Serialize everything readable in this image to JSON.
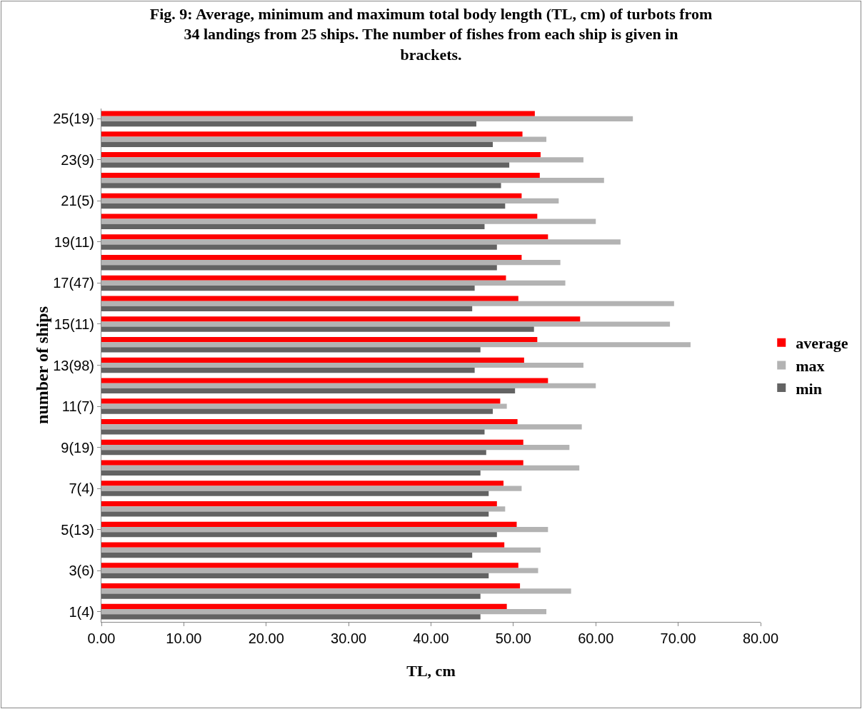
{
  "chart_data": {
    "type": "bar",
    "orientation": "horizontal",
    "title": "Fig. 9: Average, minimum and maximum total body length (TL, cm) of turbots from 34 landings from 25 ships. The number of fishes from each ship is given in brackets.",
    "xlabel": "TL, cm",
    "ylabel": "number of ships",
    "categories": [
      "25(19)",
      null,
      "23(9)",
      null,
      "21(5)",
      null,
      "19(11)",
      null,
      "17(47)",
      null,
      "15(11)",
      null,
      "13(98)",
      null,
      "11(7)",
      null,
      "9(19)",
      null,
      "7(4)",
      null,
      "5(13)",
      null,
      "3(6)",
      null,
      "1(4)"
    ],
    "series": [
      {
        "name": "average",
        "color": "#ff0000",
        "values": [
          52.6,
          51.1,
          53.3,
          53.2,
          51.0,
          52.9,
          54.2,
          51.0,
          49.1,
          50.6,
          58.1,
          52.9,
          51.3,
          54.2,
          48.4,
          50.5,
          51.2,
          51.2,
          48.8,
          48.0,
          50.4,
          48.9,
          50.6,
          50.8,
          49.2
        ]
      },
      {
        "name": "max",
        "color": "#b3b3b3",
        "values": [
          64.5,
          54.0,
          58.5,
          61.0,
          55.5,
          60.0,
          63.0,
          55.7,
          56.3,
          69.5,
          69.0,
          71.5,
          58.5,
          60.0,
          49.2,
          58.3,
          56.8,
          58.0,
          51.0,
          49.0,
          54.2,
          53.3,
          53.0,
          57.0,
          54.0
        ]
      },
      {
        "name": "min",
        "color": "#636363",
        "values": [
          45.5,
          47.5,
          49.5,
          48.5,
          49.0,
          46.5,
          48.0,
          48.0,
          45.3,
          45.0,
          52.5,
          46.0,
          45.3,
          50.2,
          47.5,
          46.5,
          46.7,
          46.0,
          47.0,
          47.0,
          48.0,
          45.0,
          47.0,
          46.0,
          46.0
        ]
      }
    ],
    "xlim": [
      0,
      80
    ],
    "xticks": [
      {
        "value": 0,
        "label": "0.00"
      },
      {
        "value": 10,
        "label": "10.00"
      },
      {
        "value": 20,
        "label": "20.00"
      },
      {
        "value": 30,
        "label": "30.00"
      },
      {
        "value": 40,
        "label": "40.00"
      },
      {
        "value": 50,
        "label": "50.00"
      },
      {
        "value": 60,
        "label": "60.00"
      },
      {
        "value": 70,
        "label": "70.00"
      },
      {
        "value": 80,
        "label": "80.00"
      }
    ],
    "grid": false,
    "legend": "right"
  }
}
